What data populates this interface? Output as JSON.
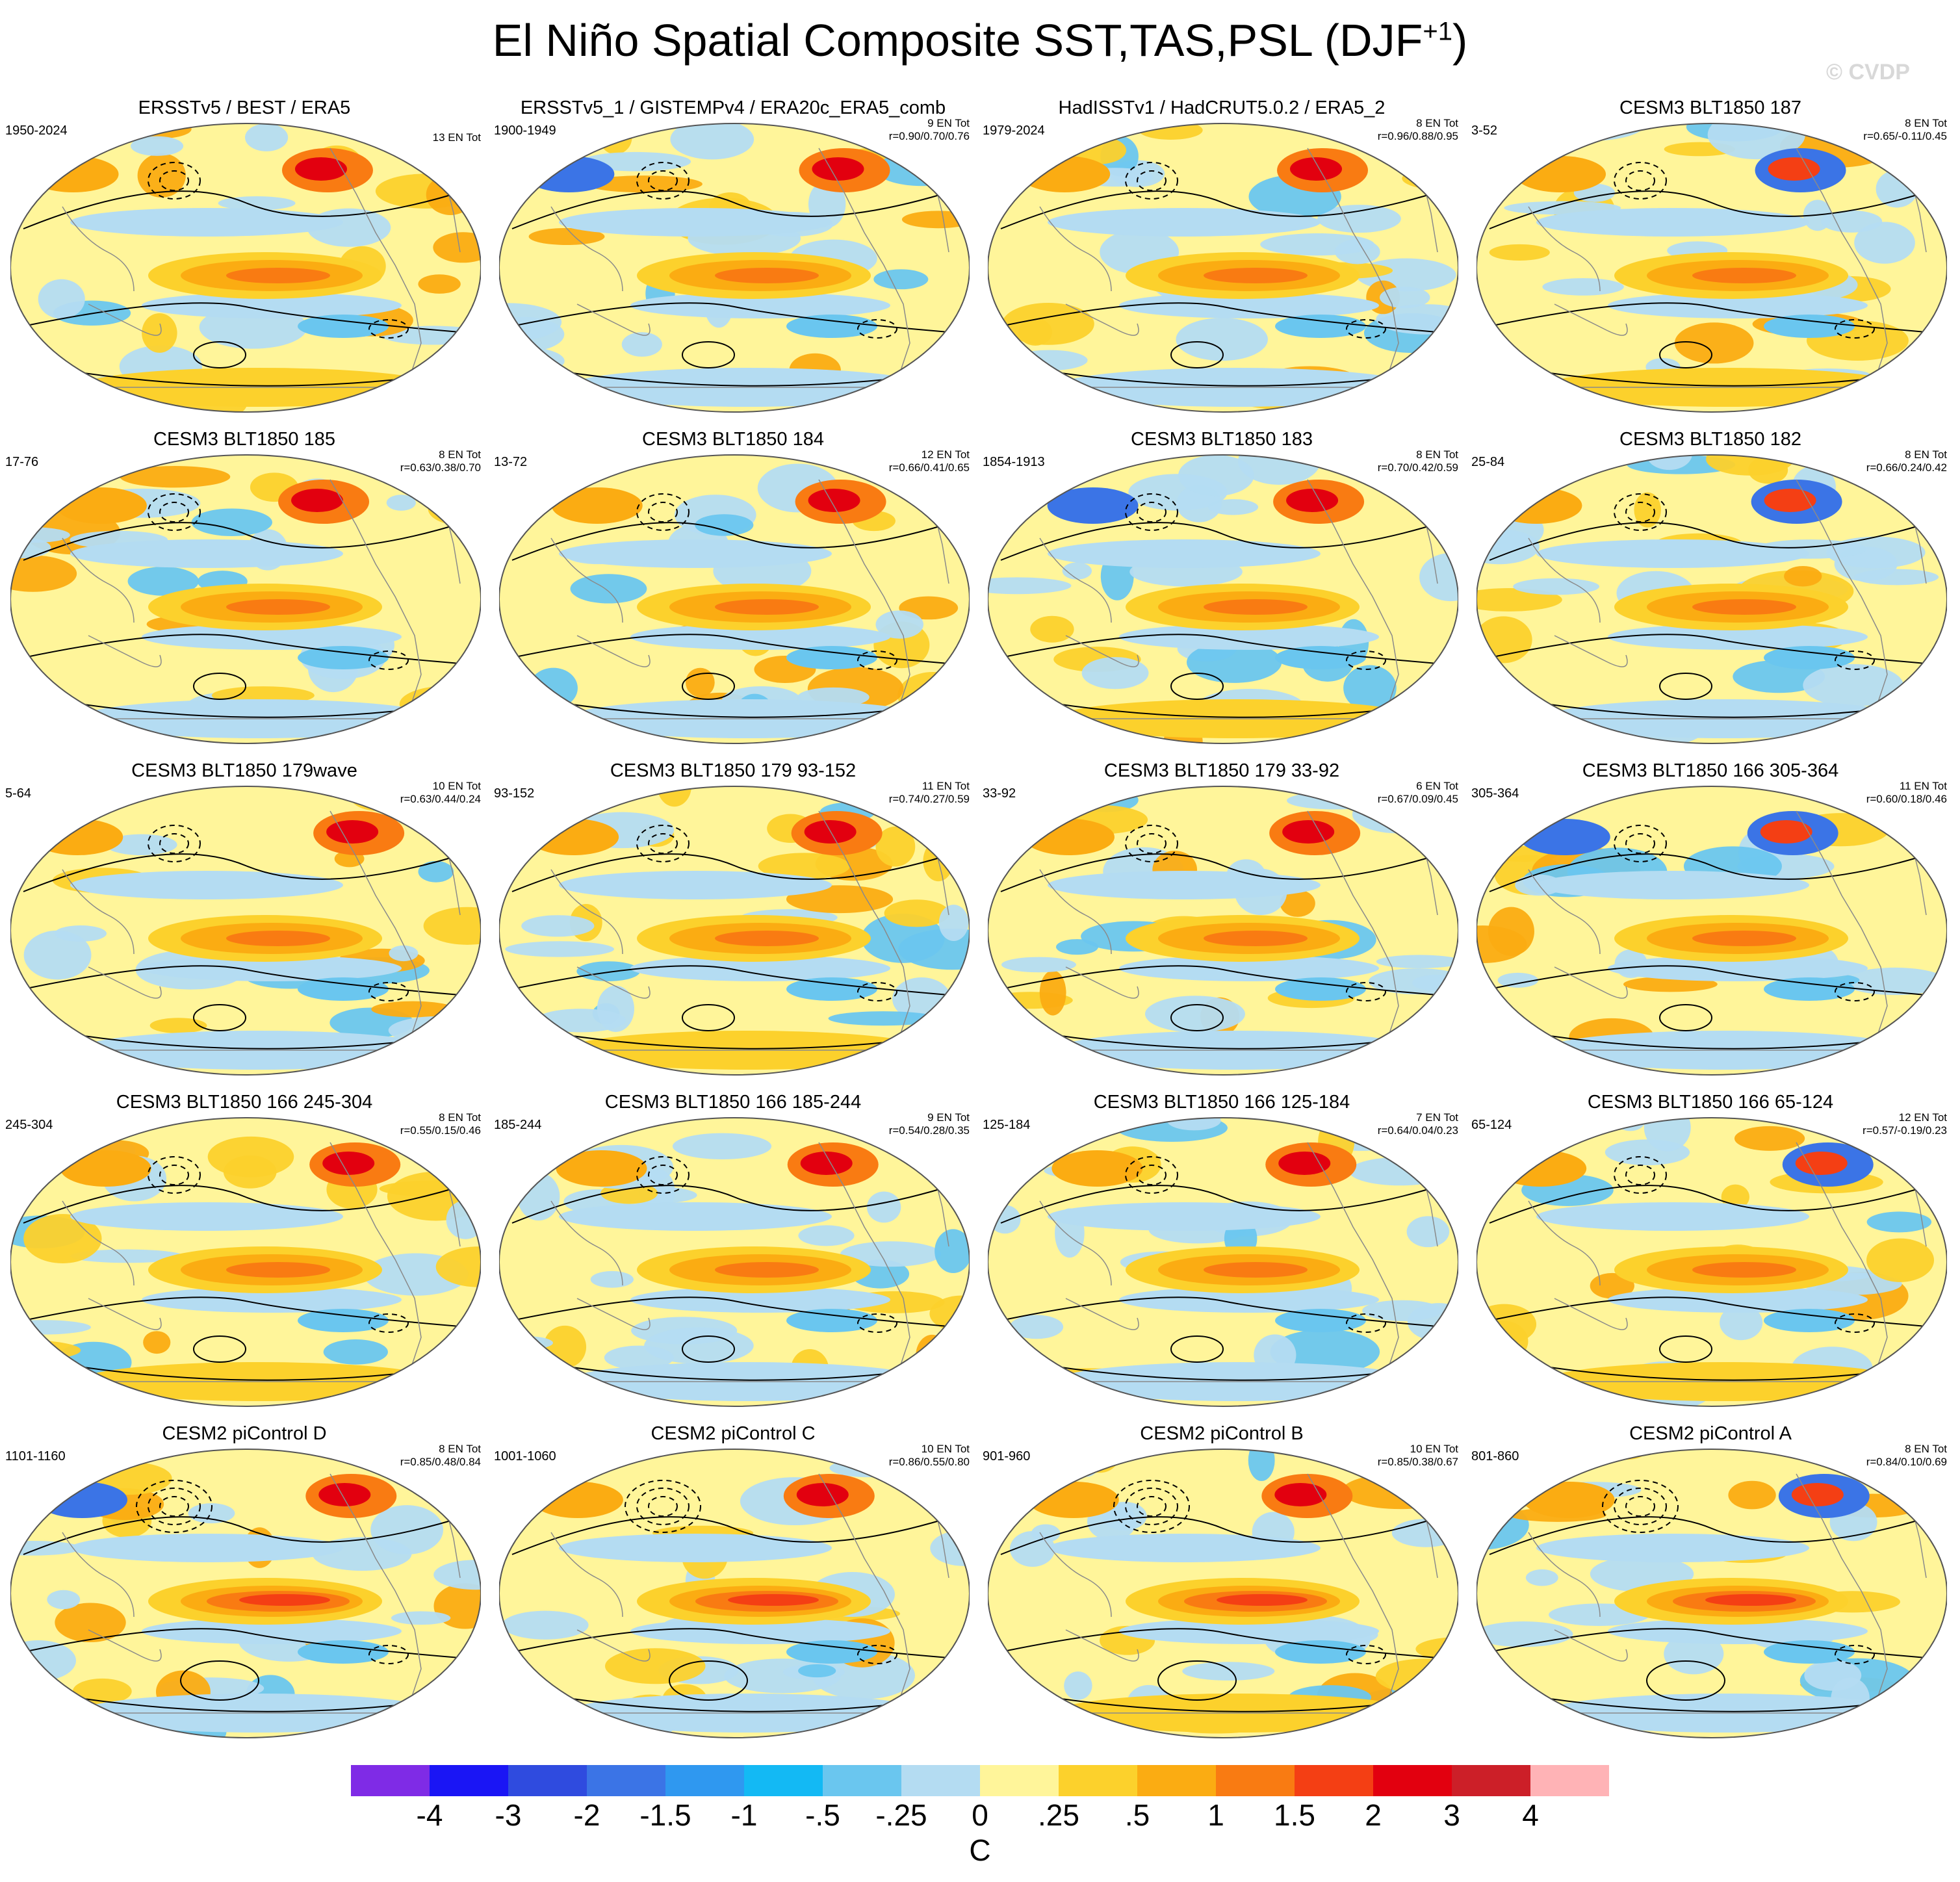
{
  "title": {
    "text": "El Niño Spatial Composite SST,TAS,PSL (DJF",
    "sup": "+1",
    "close": ")"
  },
  "watermark": "© CVDP",
  "colorbar": {
    "colors": [
      "#7f2be6",
      "#1a15f5",
      "#2f4bdf",
      "#3b74e6",
      "#2f98f0",
      "#13b9f4",
      "#6ac6ef",
      "#b4dcf2",
      "#fff59a",
      "#fcd12c",
      "#fbac12",
      "#f97b12",
      "#f43f14",
      "#e2000f",
      "#cc1f28",
      "#ffb3b6"
    ],
    "labels": [
      "-4",
      "-3",
      "-2",
      "-1.5",
      "-1",
      "-.5",
      "-.25",
      "0",
      ".25",
      ".5",
      "1",
      "1.5",
      "2",
      "3",
      "4"
    ],
    "unit": "C"
  },
  "panels": [
    {
      "title": "ERSSTv5 / BEST / ERA5",
      "years": "1950-2024",
      "en": "13 EN Tot",
      "r": "",
      "variant": 0
    },
    {
      "title": "ERSSTv5_1 / GISTEMPv4 / ERA20c_ERA5_comb",
      "years": "1900-1949",
      "en": "9 EN Tot",
      "r": "r=0.90/0.70/0.76",
      "variant": 1
    },
    {
      "title": "HadISSTv1 / HadCRUT5.0.2 / ERA5_2",
      "years": "1979-2024",
      "en": "8 EN Tot",
      "r": "r=0.96/0.88/0.95",
      "variant": 2
    },
    {
      "title": "CESM3 BLT1850 187",
      "years": "3-52",
      "en": "8 EN Tot",
      "r": "r=0.65/-0.11/0.45",
      "variant": 3
    },
    {
      "title": "CESM3 BLT1850 185",
      "years": "17-76",
      "en": "8 EN Tot",
      "r": "r=0.63/0.38/0.70",
      "variant": 4
    },
    {
      "title": "CESM3 BLT1850 184",
      "years": "13-72",
      "en": "12 EN Tot",
      "r": "r=0.66/0.41/0.65",
      "variant": 5
    },
    {
      "title": "CESM3 BLT1850 183",
      "years": "1854-1913",
      "en": "8 EN Tot",
      "r": "r=0.70/0.42/0.59",
      "variant": 6
    },
    {
      "title": "CESM3 BLT1850 182",
      "years": "25-84",
      "en": "8 EN Tot",
      "r": "r=0.66/0.24/0.42",
      "variant": 7
    },
    {
      "title": "CESM3 BLT1850 179wave",
      "years": "5-64",
      "en": "10 EN Tot",
      "r": "r=0.63/0.44/0.24",
      "variant": 8
    },
    {
      "title": "CESM3 BLT1850 179 93-152",
      "years": "93-152",
      "en": "11 EN Tot",
      "r": "r=0.74/0.27/0.59",
      "variant": 9
    },
    {
      "title": "CESM3 BLT1850 179 33-92",
      "years": "33-92",
      "en": "6 EN Tot",
      "r": "r=0.67/0.09/0.45",
      "variant": 10
    },
    {
      "title": "CESM3 BLT1850 166 305-364",
      "years": "305-364",
      "en": "11 EN Tot",
      "r": "r=0.60/0.18/0.46",
      "variant": 11
    },
    {
      "title": "CESM3 BLT1850 166 245-304",
      "years": "245-304",
      "en": "8 EN Tot",
      "r": "r=0.55/0.15/0.46",
      "variant": 12
    },
    {
      "title": "CESM3 BLT1850 166 185-244",
      "years": "185-244",
      "en": "9 EN Tot",
      "r": "r=0.54/0.28/0.35",
      "variant": 13
    },
    {
      "title": "CESM3 BLT1850 166 125-184",
      "years": "125-184",
      "en": "7 EN Tot",
      "r": "r=0.64/0.04/0.23",
      "variant": 14
    },
    {
      "title": "CESM3 BLT1850 166 65-124",
      "years": "65-124",
      "en": "12 EN Tot",
      "r": "r=0.57/-0.19/0.23",
      "variant": 15
    },
    {
      "title": "CESM2 piControl D",
      "years": "1101-1160",
      "en": "8 EN Tot",
      "r": "r=0.85/0.48/0.84",
      "variant": 16
    },
    {
      "title": "CESM2 piControl C",
      "years": "1001-1060",
      "en": "10 EN Tot",
      "r": "r=0.86/0.55/0.80",
      "variant": 17
    },
    {
      "title": "CESM2 piControl B",
      "years": "901-960",
      "en": "10 EN Tot",
      "r": "r=0.85/0.38/0.67",
      "variant": 18
    },
    {
      "title": "CESM2 piControl A",
      "years": "801-860",
      "en": "8 EN Tot",
      "r": "r=0.84/0.10/0.69",
      "variant": 19
    }
  ]
}
